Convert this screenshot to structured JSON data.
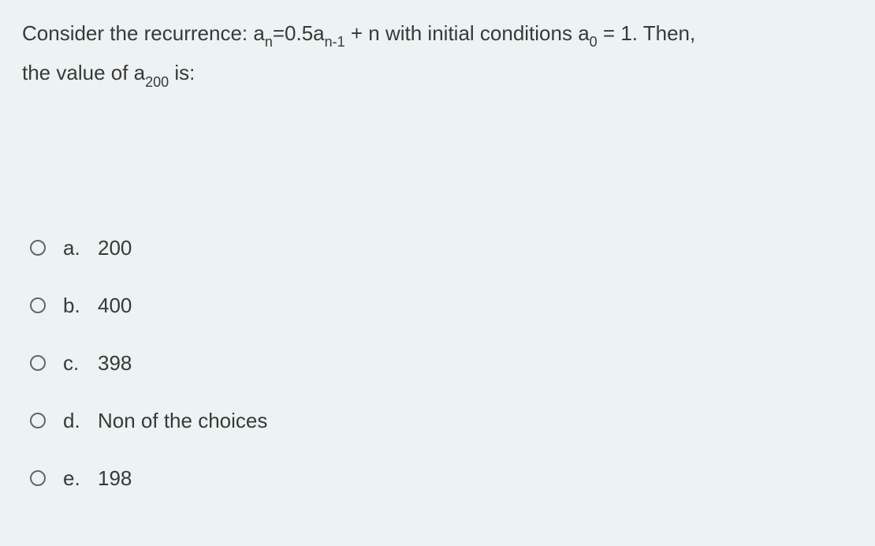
{
  "question": {
    "line1_part1": "Consider the recurrence: a",
    "line1_sub1": "n",
    "line1_part2": "=0.5a",
    "line1_sub2": "n-1",
    "line1_part3": " + n with initial conditions a",
    "line1_sub3": "0",
    "line1_part4": " = 1. Then,",
    "line2_part1": "the value of a",
    "line2_sub1": "200",
    "line2_part2": " is:"
  },
  "options": [
    {
      "letter": "a.",
      "text": "200"
    },
    {
      "letter": "b.",
      "text": "400"
    },
    {
      "letter": "c.",
      "text": "398"
    },
    {
      "letter": "d.",
      "text": "Non of the choices"
    },
    {
      "letter": "e.",
      "text": "198"
    }
  ],
  "colors": {
    "background": "#ecf3f2",
    "text": "#393939",
    "radio_border": "#666666"
  },
  "typography": {
    "question_fontsize": 26,
    "subscript_fontsize": 18,
    "option_fontsize": 26
  }
}
